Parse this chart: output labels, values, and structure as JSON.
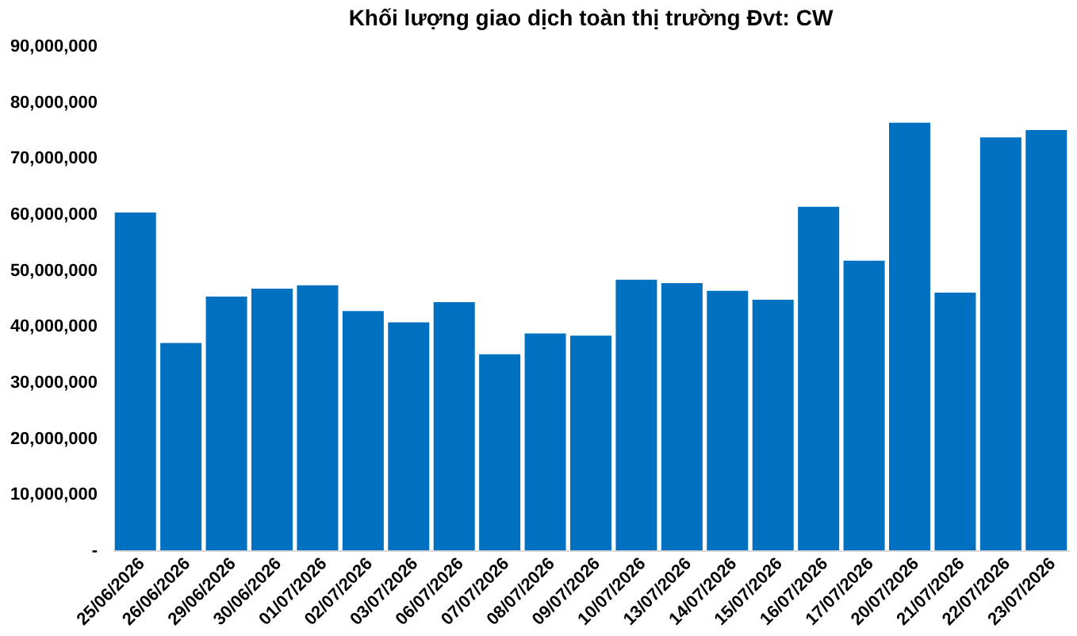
{
  "chart_data": {
    "type": "bar",
    "title": "Khối lượng giao dịch toàn thị trường Đvt: CW",
    "categories": [
      "25/06/2026",
      "26/06/2026",
      "29/06/2026",
      "30/06/2026",
      "01/07/2026",
      "02/07/2026",
      "03/07/2026",
      "06/07/2026",
      "07/07/2026",
      "08/07/2026",
      "09/07/2026",
      "10/07/2026",
      "13/07/2026",
      "14/07/2026",
      "15/07/2026",
      "16/07/2026",
      "17/07/2026",
      "20/07/2026",
      "21/07/2026",
      "22/07/2026",
      "23/07/2026"
    ],
    "values": [
      60300000,
      37000000,
      45300000,
      46700000,
      47300000,
      42700000,
      40700000,
      44300000,
      35000000,
      38700000,
      38300000,
      48300000,
      47700000,
      46300000,
      44700000,
      61300000,
      51700000,
      76300000,
      46000000,
      73700000,
      75000000
    ],
    "color": "#0070c0",
    "ylim": [
      0,
      90000000
    ],
    "yticks": [
      {
        "value": 0,
        "label": "-"
      },
      {
        "value": 10000000,
        "label": "10,000,000"
      },
      {
        "value": 20000000,
        "label": "20,000,000"
      },
      {
        "value": 30000000,
        "label": "30,000,000"
      },
      {
        "value": 40000000,
        "label": "40,000,000"
      },
      {
        "value": 50000000,
        "label": "50,000,000"
      },
      {
        "value": 60000000,
        "label": "60,000,000"
      },
      {
        "value": 70000000,
        "label": "70,000,000"
      },
      {
        "value": 80000000,
        "label": "80,000,000"
      },
      {
        "value": 90000000,
        "label": "90,000,000"
      }
    ],
    "grid": false
  }
}
